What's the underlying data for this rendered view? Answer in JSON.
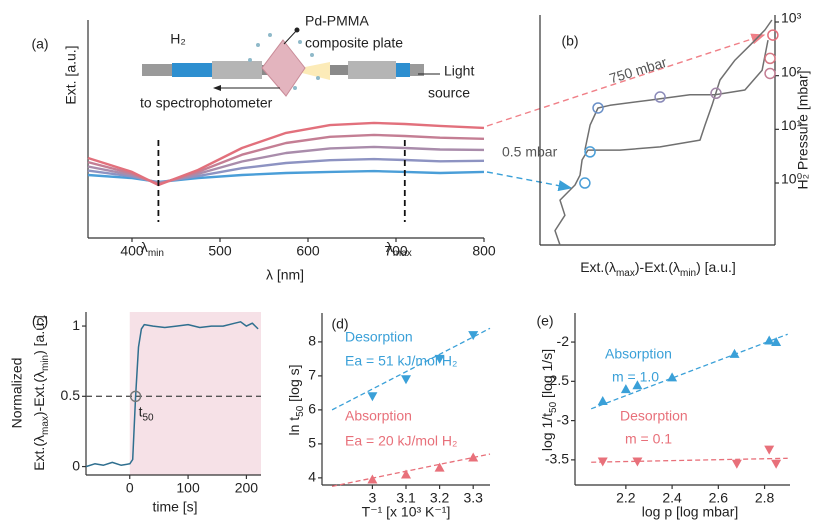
{
  "chart_data": [
    {
      "type": "line",
      "panel": "(a)",
      "xlabel": "λ [nm]",
      "ylabel": "Ext. [a.u.]",
      "xlim": [
        350,
        800
      ],
      "xticks": [
        400,
        500,
        600,
        700,
        800
      ],
      "ylim": [
        0,
        10
      ],
      "x": [
        350,
        400,
        430,
        475,
        525,
        575,
        625,
        675,
        710,
        750,
        800
      ],
      "series": [
        {
          "color": "#4a9ed8",
          "values": [
            2.89,
            2.75,
            2.57,
            2.75,
            2.89,
            2.98,
            3.03,
            3.07,
            3.03,
            2.98,
            3.03
          ]
        },
        {
          "color": "#8d93c2",
          "values": [
            3.09,
            2.82,
            2.54,
            2.84,
            3.2,
            3.44,
            3.57,
            3.62,
            3.58,
            3.52,
            3.54
          ]
        },
        {
          "color": "#a98cab",
          "values": [
            3.28,
            2.89,
            2.5,
            2.94,
            3.51,
            3.9,
            4.11,
            4.18,
            4.13,
            4.06,
            4.04
          ]
        },
        {
          "color": "#c47e94",
          "values": [
            3.48,
            2.96,
            2.47,
            3.03,
            3.82,
            4.36,
            4.64,
            4.73,
            4.68,
            4.6,
            4.55
          ]
        },
        {
          "color": "#e2707c",
          "values": [
            3.67,
            3.03,
            2.43,
            3.12,
            4.13,
            4.82,
            5.18,
            5.28,
            5.23,
            5.14,
            5.05
          ]
        }
      ],
      "markers": [
        {
          "x": 430,
          "label": [
            "λ",
            "min"
          ]
        },
        {
          "x": 710,
          "label": [
            "λ",
            "max"
          ]
        }
      ],
      "inset": {
        "gas": "H₂",
        "plate": [
          "Pd-PMMA",
          "composite plate"
        ],
        "detector": "to spectrophotometer",
        "source": [
          "Light",
          "source"
        ]
      }
    },
    {
      "type": "line",
      "panel": "(b)",
      "xlabel": [
        "Ext.(λ",
        "max",
        ")-Ext.(λ",
        "min",
        ") [a.u.]"
      ],
      "ylabel": "H₂ Pressure [mbar]",
      "xlim": [
        0,
        100
      ],
      "ylim": [
        0.07,
        1350
      ],
      "ylog": true,
      "yticks": [
        {
          "value": 1,
          "label": "10⁰"
        },
        {
          "value": 10,
          "label": "10¹"
        },
        {
          "value": 100,
          "label": "10²"
        },
        {
          "value": 1000,
          "label": "10³"
        }
      ],
      "series": [
        {
          "color": "#707070",
          "x": [
            8.5,
            6.4,
            10.6,
            8.5,
            14.9,
            17.0,
            17.9,
            20.4,
            34.0,
            51.1,
            68.1,
            70.2,
            73.2,
            76.6,
            83.0,
            89.4,
            95.7,
            98.7,
            null,
            97.0,
            94.5,
            87.2,
            74.5,
            63.8,
            46.8,
            29.8,
            24.7,
            21.3,
            19.1
          ],
          "values": [
            0.07,
            0.13,
            0.25,
            0.48,
            0.92,
            1.4,
            2.7,
            4.1,
            4.1,
            4.7,
            6.3,
            12,
            28,
            83,
            195,
            370,
            710,
            1090,
            null,
            460,
            126,
            54,
            44,
            44,
            35,
            28,
            25,
            12,
            4.1
          ]
        },
        {
          "marker": "circle",
          "colors": [
            "#4a9ed8",
            "#4a9ed8",
            "#6a90c8",
            "#8a8ab8",
            "#a286a8",
            "#c47e94",
            "#d67884",
            "#e2707c"
          ],
          "x": [
            19.1,
            21.3,
            24.7,
            51.1,
            74.9,
            97.9,
            97.9,
            99.1
          ],
          "values": [
            1,
            3.8,
            25,
            40,
            47,
            110,
            210,
            570
          ]
        }
      ],
      "annotations": [
        "750 mbar",
        "0.5 mbar"
      ]
    },
    {
      "type": "line",
      "panel": "(c)",
      "xlabel": "time [s]",
      "ylabel_top": "Normalized",
      "ylabel": [
        "Ext.(λ",
        "max",
        ")-Ext.(λ",
        "min",
        ") [a.u.]"
      ],
      "xlim": [
        -75,
        225
      ],
      "xticks": [
        0,
        100,
        200
      ],
      "ylim": [
        -0.06,
        1.1
      ],
      "yticks": [
        0,
        0.5,
        1
      ],
      "x": [
        -75,
        -60,
        -45,
        -30,
        -15,
        0,
        5,
        10,
        15,
        20,
        25,
        40,
        60,
        80,
        100,
        120,
        140,
        160,
        180,
        190,
        200,
        210,
        220
      ],
      "series": [
        {
          "color": "#2f6f8f",
          "values": [
            0,
            0.02,
            0.01,
            0.03,
            0.01,
            0.02,
            0.05,
            0.5,
            0.85,
            0.98,
            1.01,
            1.0,
            0.99,
            1.0,
            1.01,
            0.99,
            1.0,
            1.0,
            1.02,
            1.03,
            1.0,
            1.02,
            0.98
          ]
        }
      ],
      "shaded_xrange": [
        0,
        225
      ],
      "shade_color": "#f6e1e7",
      "hline": 0.5,
      "point": {
        "x": 10,
        "y": 0.5,
        "label": [
          "t",
          "50"
        ]
      }
    },
    {
      "type": "scatter",
      "panel": "(d)",
      "xlabel": "T⁻¹ [x 10³ K⁻¹]",
      "ylabel": [
        "ln t",
        "50",
        " [log s]"
      ],
      "xlim": [
        2.85,
        3.35
      ],
      "xticks": [
        3,
        3.1,
        3.2,
        3.3
      ],
      "ylim": [
        3.79,
        8.85
      ],
      "yticks": [
        4,
        5,
        6,
        7,
        8
      ],
      "series": [
        {
          "name": "Desorption",
          "note": "Ea = 51 kJ/mol H₂",
          "color": "#3aa0d8",
          "marker": "triangle-down",
          "x": [
            3,
            3.1,
            3.2,
            3.3
          ],
          "values": [
            6.4,
            6.9,
            7.5,
            8.2
          ],
          "fit": {
            "x": [
              2.88,
              3.35
            ],
            "y": [
              6.0,
              8.4
            ]
          }
        },
        {
          "name": "Absorption",
          "note": "Ea = 20 kJ/mol H₂",
          "color": "#e8707a",
          "marker": "triangle-up",
          "x": [
            3,
            3.1,
            3.2,
            3.3
          ],
          "values": [
            3.95,
            4.1,
            4.3,
            4.6
          ],
          "fit": {
            "x": [
              2.88,
              3.35
            ],
            "y": [
              3.75,
              4.7
            ]
          }
        }
      ]
    },
    {
      "type": "scatter",
      "panel": "(e)",
      "xlabel": "log p [log mbar]",
      "ylabel": [
        "log 1/t",
        "50",
        " [log 1/s]"
      ],
      "xlim": [
        1.98,
        2.91
      ],
      "xticks": [
        2.2,
        2.4,
        2.6,
        2.8
      ],
      "ylim": [
        -3.82,
        -1.63
      ],
      "yticks": [
        -3.5,
        -3,
        -2.5,
        -2
      ],
      "series": [
        {
          "name": "Absorption",
          "note": "m = 1.0",
          "color": "#3aa0d8",
          "marker": "triangle-up",
          "x": [
            2.1,
            2.2,
            2.25,
            2.4,
            2.67,
            2.82,
            2.85
          ],
          "values": [
            -2.75,
            -2.6,
            -2.55,
            -2.45,
            -2.15,
            -1.98,
            -2.0
          ],
          "fit": {
            "x": [
              2.05,
              2.9
            ],
            "y": [
              -2.85,
              -1.9
            ]
          }
        },
        {
          "name": "Desorption",
          "note": "m = 0.1",
          "color": "#e8707a",
          "marker": "triangle-down",
          "x": [
            2.1,
            2.25,
            2.68,
            2.82,
            2.85
          ],
          "values": [
            -3.52,
            -3.52,
            -3.55,
            -3.37,
            -3.55
          ],
          "fit": {
            "x": [
              2.05,
              2.9
            ],
            "y": [
              -3.53,
              -3.48
            ]
          }
        }
      ]
    }
  ]
}
